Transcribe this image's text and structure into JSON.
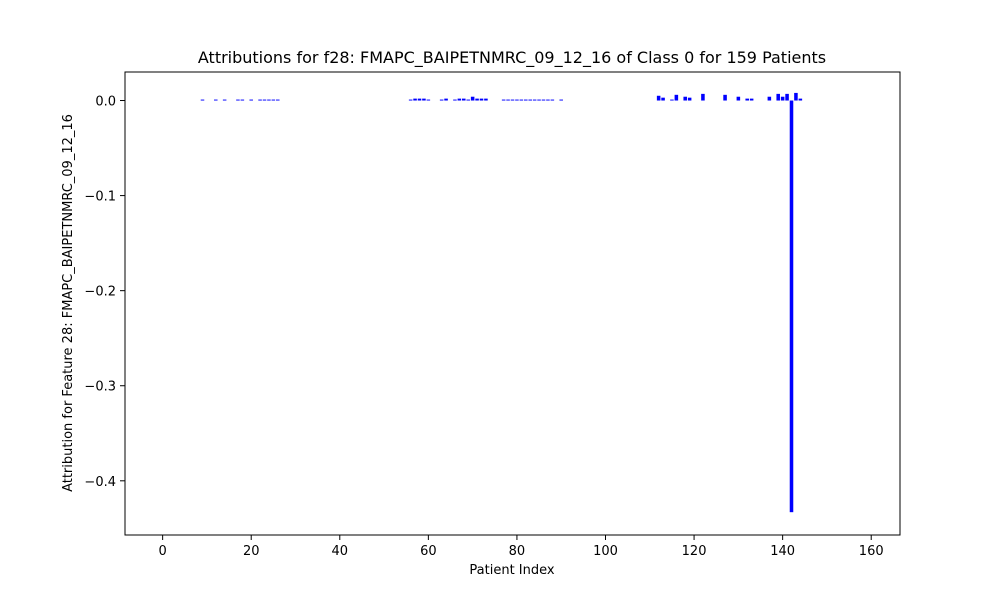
{
  "chart_data": {
    "type": "bar",
    "title": "Attributions for f28: FMAPC_BAIPETNMRC_09_12_16 of Class 0 for 159 Patients",
    "xlabel": "Patient Index",
    "ylabel": "Attribution for Feature 28: FMAPC_BAIPETNMRC_09_12_16",
    "xlim": [
      -8.5,
      166.5
    ],
    "ylim": [
      -0.457,
      0.03
    ],
    "xticks": [
      0,
      20,
      40,
      60,
      80,
      100,
      120,
      140,
      160
    ],
    "yticks": [
      0.0,
      -0.1,
      -0.2,
      -0.3,
      -0.4
    ],
    "ytick_labels": [
      "0.0",
      "−0.1",
      "−0.2",
      "−0.3",
      "−0.4"
    ],
    "grid": false,
    "bar_color": "#0000ff",
    "x": [
      9,
      12,
      14,
      17,
      18,
      20,
      22,
      23,
      24,
      25,
      26,
      56,
      57,
      58,
      59,
      60,
      63,
      64,
      66,
      67,
      68,
      69,
      70,
      71,
      72,
      73,
      77,
      78,
      79,
      80,
      81,
      82,
      83,
      84,
      85,
      86,
      87,
      88,
      90,
      112,
      113,
      115,
      116,
      118,
      119,
      122,
      127,
      130,
      132,
      133,
      137,
      139,
      140,
      141,
      142,
      143,
      144
    ],
    "values": [
      0.001,
      0.001,
      0.001,
      0.001,
      0.001,
      0.001,
      0.001,
      0.001,
      0.001,
      0.001,
      0.001,
      0.001,
      0.002,
      0.002,
      0.002,
      0.001,
      0.001,
      0.002,
      0.001,
      0.002,
      0.002,
      0.001,
      0.004,
      0.002,
      0.002,
      0.002,
      0.001,
      0.001,
      0.001,
      0.001,
      0.001,
      0.001,
      0.001,
      0.001,
      0.001,
      0.001,
      0.001,
      0.001,
      0.001,
      0.005,
      0.003,
      0.001,
      0.006,
      0.004,
      0.003,
      0.007,
      0.006,
      0.004,
      0.002,
      0.002,
      0.004,
      0.007,
      0.004,
      0.007,
      -0.433,
      0.008,
      0.002
    ]
  }
}
